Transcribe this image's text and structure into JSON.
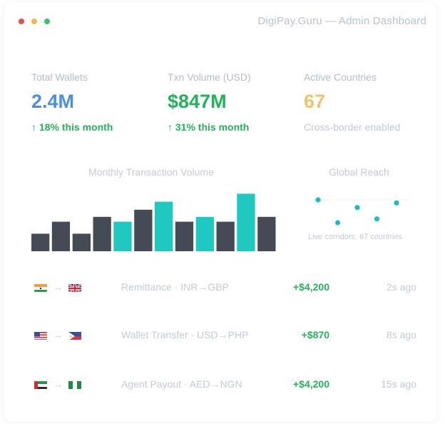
{
  "window": {
    "title": "DigiPay.Guru — Admin Dashboard"
  },
  "stats": [
    {
      "label": "Total Wallets",
      "value": "2.4M",
      "sub": "↑ 18% this month"
    },
    {
      "label": "Txn Volume (USD)",
      "value": "$847M",
      "sub": "↑ 31% this month"
    },
    {
      "label": "Active Countries",
      "value": "67",
      "sub": "Cross-border enabled"
    }
  ],
  "colors": {
    "blue": "#4a90e2",
    "green": "#22b35a",
    "amber": "#f3c26b",
    "bar_dark": "#454b55",
    "bar_teal": "#1ec9c2",
    "dot_teal": "#17c0bd"
  },
  "chart_data": [
    {
      "type": "bar",
      "title": "Monthly Transaction Volume",
      "values": [
        22,
        37,
        22,
        43,
        37,
        52,
        62,
        37,
        43,
        37,
        72,
        43
      ],
      "highlighted": [
        false,
        false,
        false,
        false,
        true,
        false,
        true,
        false,
        true,
        false,
        true,
        false
      ],
      "ylim": [
        0,
        75
      ],
      "grid": false,
      "legend": "none"
    },
    {
      "type": "scatter",
      "title": "Global Reach",
      "points": [
        {
          "x": 1,
          "y": 4
        },
        {
          "x": 2,
          "y": 1
        },
        {
          "x": 3,
          "y": 3
        },
        {
          "x": 4,
          "y": 1.5
        },
        {
          "x": 5,
          "y": 3.6
        }
      ],
      "caption": "Live corridors: 67 countries"
    }
  ],
  "transactions": [
    {
      "from_flag": "india-flag",
      "to_flag": "uk-flag",
      "arrow": "→",
      "desc": "Remittance · INR→GBP",
      "amount": "+$4,200",
      "time": "2s ago"
    },
    {
      "from_flag": "usa-flag",
      "to_flag": "philippines-flag",
      "arrow": "→",
      "desc": "Wallet Transfer · USD→PHP",
      "amount": "+$870",
      "time": "8s ago"
    },
    {
      "from_flag": "uae-flag",
      "to_flag": "nigeria-flag",
      "arrow": "→",
      "desc": "Agent Payout · AED→NGN",
      "amount": "+$4,200",
      "time": "15s ago"
    }
  ]
}
